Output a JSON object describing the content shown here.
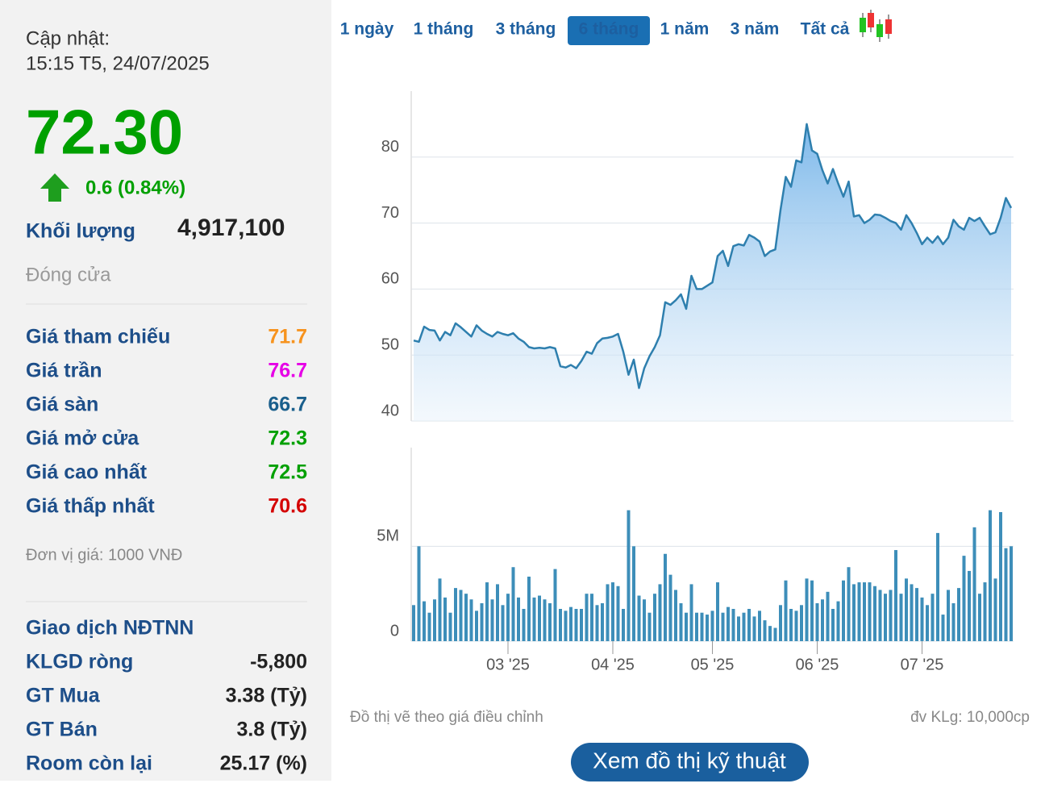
{
  "update": {
    "label": "Cập nhật:",
    "time": "15:15 T5, 24/07/2025"
  },
  "price": "72.30",
  "change": "0.6 (0.84%)",
  "volume": {
    "label": "Khối lượng",
    "value": "4,917,100"
  },
  "status": "Đóng cửa",
  "price_table": [
    {
      "label": "Giá tham chiếu",
      "value": 71.7
    },
    {
      "label": "Giá trần",
      "value": 76.7
    },
    {
      "label": "Giá sàn",
      "value": 66.7
    },
    {
      "label": "Giá mở cửa",
      "value": 72.3
    },
    {
      "label": "Giá cao nhất",
      "value": 72.5
    },
    {
      "label": "Giá thấp nhất",
      "value": 70.6
    }
  ],
  "unit_note": "Đơn vị giá: 1000 VNĐ",
  "foreign": {
    "title": "Giao dịch NĐTNN",
    "rows": [
      {
        "label": "KLGD ròng",
        "value": "-5,800"
      },
      {
        "label": "GT Mua",
        "value": "3.38 (Tỷ)"
      },
      {
        "label": "GT Bán",
        "value": "3.8 (Tỷ)"
      },
      {
        "label": "Room còn lại",
        "value": "25.17 (%)"
      }
    ]
  },
  "tabs": [
    "1 ngày",
    "1 tháng",
    "3 tháng",
    "6 tháng",
    "1 năm",
    "3 năm",
    "Tất cả"
  ],
  "active_tab": 3,
  "chart_note": "Đồ thị vẽ theo giá điều chỉnh",
  "volume_note": "đv KLg: 10,000cp",
  "button": "Xem đồ thị kỹ thuật",
  "chart_data": [
    {
      "type": "area",
      "color": "#2e7fae",
      "ylim": [
        40,
        90
      ],
      "yticks": [
        40,
        50,
        60,
        70,
        80
      ],
      "values": [
        52.2,
        52.0,
        54.3,
        53.8,
        53.7,
        52.2,
        53.5,
        53.0,
        54.8,
        54.2,
        53.5,
        52.8,
        54.5,
        53.7,
        53.2,
        52.8,
        53.5,
        53.2,
        53.0,
        53.3,
        52.5,
        52.0,
        51.2,
        51.0,
        51.1,
        51.0,
        51.2,
        51.0,
        48.3,
        48.1,
        48.5,
        48.0,
        49.1,
        50.5,
        50.2,
        51.8,
        52.5,
        52.6,
        52.8,
        53.2,
        50.5,
        47.0,
        49.3,
        45.0,
        48.0,
        49.8,
        51.2,
        53.0,
        58.0,
        57.6,
        58.3,
        59.2,
        57.0,
        62.0,
        60.0,
        60.0,
        60.5,
        61.0,
        65.0,
        65.8,
        63.5,
        66.5,
        66.8,
        66.6,
        68.2,
        67.8,
        67.2,
        65.0,
        65.7,
        66.0,
        72.0,
        77.0,
        75.5,
        79.5,
        79.2,
        85.0,
        81.0,
        80.5,
        78.0,
        76.0,
        78.2,
        76.0,
        74.0,
        76.3,
        71.0,
        71.2,
        70.0,
        70.5,
        71.3,
        71.2,
        70.8,
        70.3,
        70.0,
        69.0,
        71.2,
        70.0,
        68.5,
        66.8,
        67.8,
        67.0,
        68.0,
        66.8,
        67.8,
        70.5,
        69.5,
        69.0,
        70.8,
        70.3,
        70.8,
        69.5,
        68.3,
        68.6,
        70.8,
        73.8,
        72.3
      ]
    },
    {
      "type": "bar",
      "color": "#3d8eb9",
      "ylim": [
        0,
        10200000
      ],
      "yticks": [
        0,
        {
          "value": 5000000,
          "label": "5M"
        }
      ],
      "categories": [
        null,
        null,
        null,
        null,
        null,
        null,
        null,
        null,
        null,
        null,
        null,
        null,
        null,
        null,
        null,
        null,
        null,
        null,
        "03 '25",
        null,
        null,
        null,
        null,
        null,
        null,
        null,
        null,
        null,
        null,
        null,
        null,
        null,
        null,
        null,
        null,
        null,
        null,
        null,
        "04 '25",
        null,
        null,
        null,
        null,
        null,
        null,
        null,
        null,
        null,
        null,
        null,
        null,
        null,
        null,
        null,
        null,
        null,
        null,
        "05 '25",
        null,
        null,
        null,
        null,
        null,
        null,
        null,
        null,
        null,
        null,
        null,
        null,
        null,
        null,
        null,
        null,
        null,
        null,
        null,
        "06 '25",
        null,
        null,
        null,
        null,
        null,
        null,
        null,
        null,
        null,
        null,
        null,
        null,
        null,
        null,
        null,
        null,
        null,
        null,
        null,
        "07 '25",
        null,
        null,
        null,
        null,
        null,
        null,
        null,
        null,
        null,
        null,
        null,
        null,
        null,
        null,
        null,
        null,
        null
      ],
      "values": [
        1900000,
        5000000,
        2100000,
        1500000,
        2200000,
        3300000,
        2300000,
        1500000,
        2800000,
        2700000,
        2500000,
        2200000,
        1600000,
        2000000,
        3100000,
        2200000,
        3000000,
        1900000,
        2500000,
        3900000,
        2300000,
        1700000,
        3400000,
        2300000,
        2400000,
        2200000,
        2000000,
        3800000,
        1700000,
        1600000,
        1800000,
        1700000,
        1700000,
        2500000,
        2500000,
        1900000,
        2000000,
        3000000,
        3100000,
        2900000,
        1700000,
        6900000,
        5000000,
        2400000,
        2200000,
        1500000,
        2500000,
        3000000,
        4600000,
        3500000,
        2700000,
        2000000,
        1500000,
        3000000,
        1500000,
        1500000,
        1400000,
        1600000,
        3100000,
        1500000,
        1800000,
        1700000,
        1300000,
        1500000,
        1700000,
        1300000,
        1600000,
        1100000,
        800000,
        700000,
        1900000,
        3200000,
        1700000,
        1600000,
        1900000,
        3300000,
        3200000,
        2000000,
        2200000,
        2600000,
        1700000,
        2100000,
        3200000,
        3900000,
        3000000,
        3100000,
        3100000,
        3100000,
        2900000,
        2700000,
        2500000,
        2700000,
        4800000,
        2500000,
        3300000,
        3000000,
        2800000,
        2300000,
        1900000,
        2500000,
        5700000,
        1400000,
        2700000,
        2000000,
        2800000,
        4500000,
        3700000,
        6000000,
        2500000,
        3100000,
        6900000,
        3300000,
        6800000,
        4900000,
        5000000
      ]
    }
  ]
}
